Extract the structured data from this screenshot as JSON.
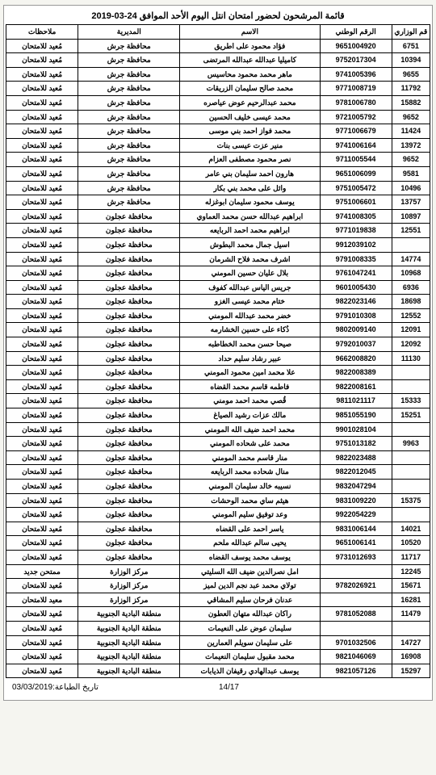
{
  "title": "قائمة المرشحون لحضور امتحان انتل اليوم الأحد الموافق 24-03-2019",
  "columns": {
    "ministerial": "قم الوزاري",
    "national": "الرقم الوطني",
    "name": "الاسم",
    "directorate": "المديرية",
    "notes": "ملاحظات"
  },
  "footer": {
    "page": "14/17",
    "print_date": "تاريخ الطباعة:03/03/2019"
  },
  "rows": [
    {
      "min": "6751",
      "nat": "9651004920",
      "name": "فؤاد محمود على اطريق",
      "dir": "محافظة جرش",
      "note": "مُعيد للامتحان"
    },
    {
      "min": "10394",
      "nat": "9752017304",
      "name": "كامیليا عبدالله عبدالله المرتضى",
      "dir": "محافظة جرش",
      "note": "مُعيد للامتحان"
    },
    {
      "min": "9655",
      "nat": "9741005396",
      "name": "ماهر محمد محمود محاسيس",
      "dir": "محافظة جرش",
      "note": "مُعيد للامتحان"
    },
    {
      "min": "11792",
      "nat": "9771008719",
      "name": "محمد صالح سليمان الزريقات",
      "dir": "محافظة جرش",
      "note": "مُعيد للامتحان"
    },
    {
      "min": "15882",
      "nat": "9781006780",
      "name": "محمد عبدالرحيم عوض عياصره",
      "dir": "محافظة جرش",
      "note": "مُعيد للامتحان"
    },
    {
      "min": "9652",
      "nat": "9721005792",
      "name": "محمد عيسى خليف الحسين",
      "dir": "محافظة جرش",
      "note": "مُعيد للامتحان"
    },
    {
      "min": "11424",
      "nat": "9771006679",
      "name": "محمد فواز احمد بني موسى",
      "dir": "محافظة جرش",
      "note": "مُعيد للامتحان"
    },
    {
      "min": "13972",
      "nat": "9741006164",
      "name": "منير عزت عيسى بنات",
      "dir": "محافظة جرش",
      "note": "مُعيد للامتحان"
    },
    {
      "min": "9652",
      "nat": "9711005544",
      "name": "نصر محمود مصطفى العزام",
      "dir": "محافظة جرش",
      "note": "مُعيد للامتحان"
    },
    {
      "min": "9581",
      "nat": "9651006099",
      "name": "هارون احمد سليمان بني عامر",
      "dir": "محافظة جرش",
      "note": "مُعيد للامتحان"
    },
    {
      "min": "10496",
      "nat": "9751005472",
      "name": "وائل على محمد بني بكار",
      "dir": "محافظة جرش",
      "note": "مُعيد للامتحان"
    },
    {
      "min": "13757",
      "nat": "9751006601",
      "name": "يوسف محمود سليمان ابوغزله",
      "dir": "محافظة جرش",
      "note": "مُعيد للامتحان"
    },
    {
      "min": "10897",
      "nat": "9741008305",
      "name": "ابراهيم عبدالله حسن محمد العماوي",
      "dir": "محافظة عجلون",
      "note": "مُعيد للامتحان"
    },
    {
      "min": "12551",
      "nat": "9771019838",
      "name": "ابراهيم محمد احمد الربايعه",
      "dir": "محافظة عجلون",
      "note": "مُعيد للامتحان"
    },
    {
      "min": "",
      "nat": "9912039102",
      "name": "اسيل جمال محمد البطوش",
      "dir": "محافظة عجلون",
      "note": "مُعيد للامتحان"
    },
    {
      "min": "14774",
      "nat": "9791008335",
      "name": "اشرف محمد فلاح الشرمان",
      "dir": "محافظة عجلون",
      "note": "مُعيد للامتحان"
    },
    {
      "min": "10968",
      "nat": "9761047241",
      "name": "بلال عليان حسين المومني",
      "dir": "محافظة عجلون",
      "note": "مُعيد للامتحان"
    },
    {
      "min": "6936",
      "nat": "9601005430",
      "name": "جريس الياس عبدالله كفوف",
      "dir": "محافظة عجلون",
      "note": "مُعيد للامتحان"
    },
    {
      "min": "18698",
      "nat": "9822023146",
      "name": "ختام محمد عيسى الغزو",
      "dir": "محافظة عجلون",
      "note": "مُعيد للامتحان"
    },
    {
      "min": "12552",
      "nat": "9791010308",
      "name": "خضر محمد عبدالله المومني",
      "dir": "محافظة عجلون",
      "note": "مُعيد للامتحان"
    },
    {
      "min": "12091",
      "nat": "9802009140",
      "name": "ذُکاء على حسين الخشارمه",
      "dir": "محافظة عجلون",
      "note": "مُعيد للامتحان"
    },
    {
      "min": "12092",
      "nat": "9792010037",
      "name": "صیحا حسن محمد الخطاطبه",
      "dir": "محافظة عجلون",
      "note": "مُعيد للامتحان"
    },
    {
      "min": "11130",
      "nat": "9662008820",
      "name": "عبير رشاد سليم حداد",
      "dir": "محافظة عجلون",
      "note": "مُعيد للامتحان"
    },
    {
      "min": "",
      "nat": "9822008389",
      "name": "علا محمد امين محمود المومني",
      "dir": "محافظة عجلون",
      "note": "مُعيد للامتحان"
    },
    {
      "min": "",
      "nat": "9822008161",
      "name": "فاطمه قاسم محمد القضاه",
      "dir": "محافظة عجلون",
      "note": "مُعيد للامتحان"
    },
    {
      "min": "15333",
      "nat": "9811021117",
      "name": "قُصي محمد احمد مومني",
      "dir": "محافظة عجلون",
      "note": "مُعيد للامتحان"
    },
    {
      "min": "15251",
      "nat": "9851055190",
      "name": "مالك عزات رشيد الصياغ",
      "dir": "محافظة عجلون",
      "note": "مُعيد للامتحان"
    },
    {
      "min": "",
      "nat": "9901028104",
      "name": "محمد احمد ضيف الله المومني",
      "dir": "محافظة عجلون",
      "note": "مُعيد للامتحان"
    },
    {
      "min": "9963",
      "nat": "9751013182",
      "name": "محمد على شحاده المومني",
      "dir": "محافظة عجلون",
      "note": "مُعيد للامتحان"
    },
    {
      "min": "",
      "nat": "9822023488",
      "name": "منار قاسم محمد المومني",
      "dir": "محافظة عجلون",
      "note": "مُعيد للامتحان"
    },
    {
      "min": "",
      "nat": "9822012045",
      "name": "منال شحاده محمد الربايعه",
      "dir": "محافظة عجلون",
      "note": "مُعيد للامتحان"
    },
    {
      "min": "",
      "nat": "9832047294",
      "name": "نسيبه خالد سليمان المومني",
      "dir": "محافظة عجلون",
      "note": "مُعيد للامتحان"
    },
    {
      "min": "15375",
      "nat": "9831009220",
      "name": "هيثم ساي محمد الوحشات",
      "dir": "محافظة عجلون",
      "note": "مُعيد للامتحان"
    },
    {
      "min": "",
      "nat": "9922054229",
      "name": "وعد توفيق سليم المومني",
      "dir": "محافظة عجلون",
      "note": "مُعيد للامتحان"
    },
    {
      "min": "14021",
      "nat": "9831006144",
      "name": "ياسر احمد على القضاه",
      "dir": "محافظة عجلون",
      "note": "مُعيد للامتحان"
    },
    {
      "min": "10520",
      "nat": "9651006141",
      "name": "يحيى سالم عبدالله ملحم",
      "dir": "محافظة عجلون",
      "note": "مُعيد للامتحان"
    },
    {
      "min": "11717",
      "nat": "9731012693",
      "name": "يوسف محمد يوسف القضاه",
      "dir": "محافظة عجلون",
      "note": "مُعيد للامتحان"
    },
    {
      "min": "12245",
      "nat": "",
      "name": "امل نصرالدين ضيف الله السليتي",
      "dir": "مركز الوزارة",
      "note": "ممتحن جديد"
    },
    {
      "min": "15671",
      "nat": "9782026921",
      "name": "تولاي محمد عبد نجم الدين لميز",
      "dir": "مركز الوزارة",
      "note": "مُعيد للامتحان"
    },
    {
      "min": "16281",
      "nat": "",
      "name": "عدنان فرحان سلیم المشاقي",
      "dir": "مركز الوزارة",
      "note": "معيد للامتحان"
    },
    {
      "min": "11479",
      "nat": "9781052088",
      "name": "راكان عبدالله متهان العطون",
      "dir": "منطقة البادية الجنوبية",
      "note": "مُعيد للامتحان"
    },
    {
      "min": "",
      "nat": "",
      "name": "سليمان عوض على النعيمات",
      "dir": "منطقة البادية الجنوبية",
      "note": "مُعيد للامتحان"
    },
    {
      "min": "14727",
      "nat": "9701032506",
      "name": "على سليمان سويلم العمارين",
      "dir": "منطقة البادية الجنوبية",
      "note": "مُعيد للامتحان"
    },
    {
      "min": "16908",
      "nat": "9821046069",
      "name": "محمد مقبول سليمان النعيمات",
      "dir": "منطقة البادية الجنوبية",
      "note": "مُعيد للامتحان"
    },
    {
      "min": "15297",
      "nat": "9821057126",
      "name": "يوسف عبدالهادي رقيفان الذيابات",
      "dir": "منطقة البادية الجنوبية",
      "note": "مُعيد للامتحان"
    }
  ]
}
